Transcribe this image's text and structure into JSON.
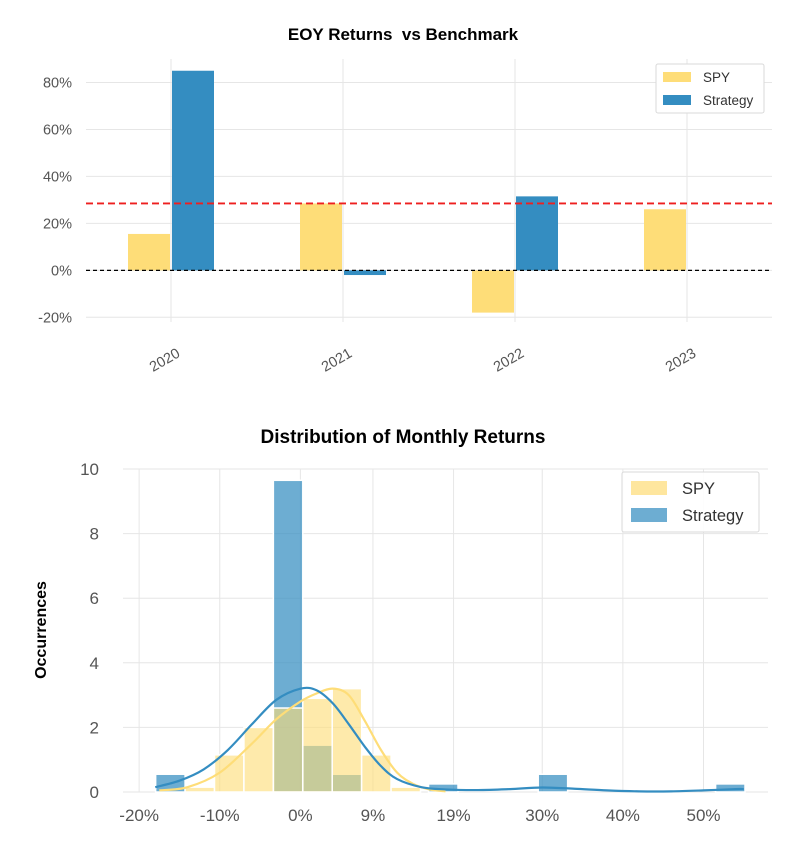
{
  "chart_data": [
    {
      "type": "bar",
      "title": "EOY Returns  vs Benchmark",
      "xlabel": "",
      "ylabel": "",
      "categories": [
        "2020",
        "2021",
        "2022",
        "2023"
      ],
      "series": [
        {
          "name": "SPY",
          "color": "#fedd78",
          "values": [
            15.5,
            28.5,
            -18.0,
            26.0
          ]
        },
        {
          "name": "Strategy",
          "color": "#348dc1",
          "values": [
            85.0,
            -2.0,
            31.5,
            null
          ]
        }
      ],
      "yticks": [
        "-20%",
        "0%",
        "20%",
        "40%",
        "60%",
        "80%"
      ],
      "ytick_values": [
        -20,
        0,
        20,
        40,
        60,
        80
      ],
      "ylim": [
        -22,
        90
      ],
      "mean_line": {
        "value": 28.5,
        "color": "#ee1f1f",
        "style": "dashed"
      },
      "zero_line": {
        "value": 0,
        "color": "#000000",
        "style": "dashed"
      },
      "grid": true,
      "legend_position": "top-right"
    },
    {
      "type": "histogram",
      "title": "Distribution of Monthly Returns",
      "xlabel": "",
      "ylabel": "Occurrences",
      "xticks": [
        "-20%",
        "-10%",
        "0%",
        "9%",
        "19%",
        "30%",
        "40%",
        "50%"
      ],
      "xtick_values": [
        -20,
        -10,
        0,
        9,
        19,
        30,
        40,
        50
      ],
      "xlim": [
        -22,
        58
      ],
      "yticks": [
        "0",
        "2",
        "4",
        "6",
        "8",
        "10"
      ],
      "ytick_values": [
        0,
        2,
        4,
        6,
        8,
        10
      ],
      "ylim": [
        0,
        10
      ],
      "bin_width": 3.65,
      "series": [
        {
          "name": "SPY",
          "color": "#fedd78",
          "bins": [
            {
              "x0": -14.3,
              "count": 0.15
            },
            {
              "x0": -10.65,
              "count": 1.15
            },
            {
              "x0": -7.0,
              "count": 2.0
            },
            {
              "x0": -3.35,
              "count": 2.6
            },
            {
              "x0": 0.3,
              "count": 2.9
            },
            {
              "x0": 3.95,
              "count": 3.2
            },
            {
              "x0": 7.6,
              "count": 1.15
            },
            {
              "x0": 11.25,
              "count": 0.15
            }
          ],
          "kde": [
            [
              -17.5,
              0.05
            ],
            [
              -14,
              0.15
            ],
            [
              -10,
              0.6
            ],
            [
              -6,
              1.5
            ],
            [
              -3,
              2.25
            ],
            [
              0,
              2.8
            ],
            [
              2,
              3.05
            ],
            [
              4,
              3.2
            ],
            [
              6,
              3.0
            ],
            [
              8,
              2.2
            ],
            [
              10,
              1.3
            ],
            [
              12,
              0.6
            ],
            [
              14,
              0.25
            ],
            [
              16,
              0.08
            ],
            [
              18,
              0.02
            ]
          ]
        },
        {
          "name": "Strategy",
          "color": "#348dc1",
          "bins": [
            {
              "x0": -17.95,
              "count": 0.55
            },
            {
              "x0": -3.35,
              "count": 9.65
            },
            {
              "x0": 0.3,
              "count": 1.45
            },
            {
              "x0": 3.95,
              "count": 0.55
            },
            {
              "x0": 15.9,
              "count": 0.25
            },
            {
              "x0": 29.5,
              "count": 0.55
            },
            {
              "x0": 51.5,
              "count": 0.25
            }
          ],
          "kde": [
            [
              -18,
              0.15
            ],
            [
              -15,
              0.35
            ],
            [
              -12,
              0.7
            ],
            [
              -9,
              1.3
            ],
            [
              -6,
              2.1
            ],
            [
              -3,
              2.85
            ],
            [
              0,
              3.2
            ],
            [
              2,
              3.15
            ],
            [
              4,
              2.75
            ],
            [
              6,
              2.1
            ],
            [
              8,
              1.4
            ],
            [
              10,
              0.8
            ],
            [
              12,
              0.4
            ],
            [
              15,
              0.15
            ],
            [
              18,
              0.08
            ],
            [
              22,
              0.06
            ],
            [
              26,
              0.09
            ],
            [
              30,
              0.14
            ],
            [
              34,
              0.1
            ],
            [
              38,
              0.05
            ],
            [
              42,
              0.02
            ],
            [
              46,
              0.02
            ],
            [
              50,
              0.05
            ],
            [
              54,
              0.09
            ],
            [
              55,
              0.09
            ]
          ]
        }
      ],
      "grid": true,
      "legend_position": "top-right"
    }
  ]
}
